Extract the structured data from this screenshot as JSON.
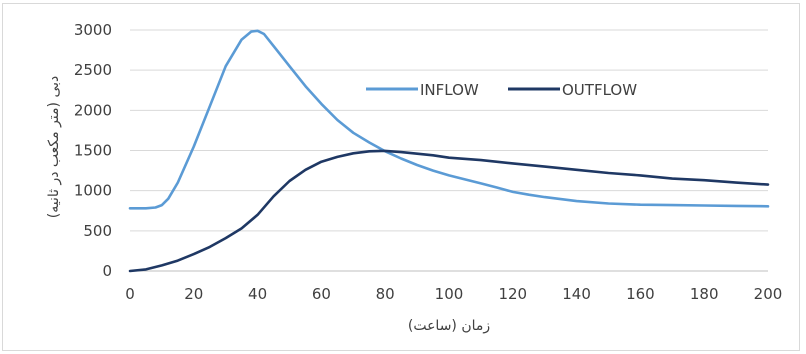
{
  "chart_data": {
    "type": "line",
    "title": "",
    "xlabel": "زمان (ساعت)",
    "ylabel": "دبی (متر مکعب در ثانیه)",
    "xlim": [
      0,
      200
    ],
    "ylim": [
      0,
      3000
    ],
    "xticks": [
      "0",
      "20",
      "40",
      "60",
      "80",
      "100",
      "120",
      "140",
      "160",
      "180",
      "200"
    ],
    "yticks": [
      "0",
      "500",
      "1000",
      "1500",
      "2000",
      "2500",
      "3000"
    ],
    "grid": "horizontal",
    "legend": "center-right",
    "series": [
      {
        "name": "INFLOW",
        "color": "#5b9bd5",
        "x": [
          0,
          5,
          8,
          10,
          12,
          15,
          20,
          25,
          30,
          35,
          38,
          40,
          42,
          45,
          48,
          50,
          55,
          60,
          65,
          70,
          75,
          80,
          85,
          90,
          95,
          100,
          105,
          110,
          115,
          120,
          125,
          130,
          140,
          150,
          160,
          170,
          180,
          190,
          200
        ],
        "y": [
          780,
          780,
          790,
          820,
          900,
          1100,
          1550,
          2050,
          2550,
          2880,
          2980,
          2990,
          2950,
          2800,
          2650,
          2550,
          2300,
          2080,
          1880,
          1720,
          1600,
          1490,
          1400,
          1320,
          1250,
          1190,
          1140,
          1090,
          1040,
          985,
          950,
          920,
          870,
          840,
          825,
          820,
          815,
          810,
          805
        ]
      },
      {
        "name": "OUTFLOW",
        "color": "#1f3864",
        "x": [
          0,
          5,
          10,
          15,
          20,
          25,
          30,
          35,
          40,
          45,
          50,
          55,
          60,
          65,
          70,
          75,
          80,
          85,
          90,
          95,
          100,
          110,
          120,
          130,
          140,
          150,
          160,
          170,
          180,
          190,
          200
        ],
        "y": [
          0,
          20,
          70,
          130,
          210,
          300,
          410,
          530,
          700,
          930,
          1120,
          1260,
          1360,
          1420,
          1465,
          1490,
          1495,
          1480,
          1460,
          1440,
          1410,
          1380,
          1340,
          1300,
          1260,
          1220,
          1190,
          1150,
          1130,
          1100,
          1075
        ]
      }
    ]
  }
}
